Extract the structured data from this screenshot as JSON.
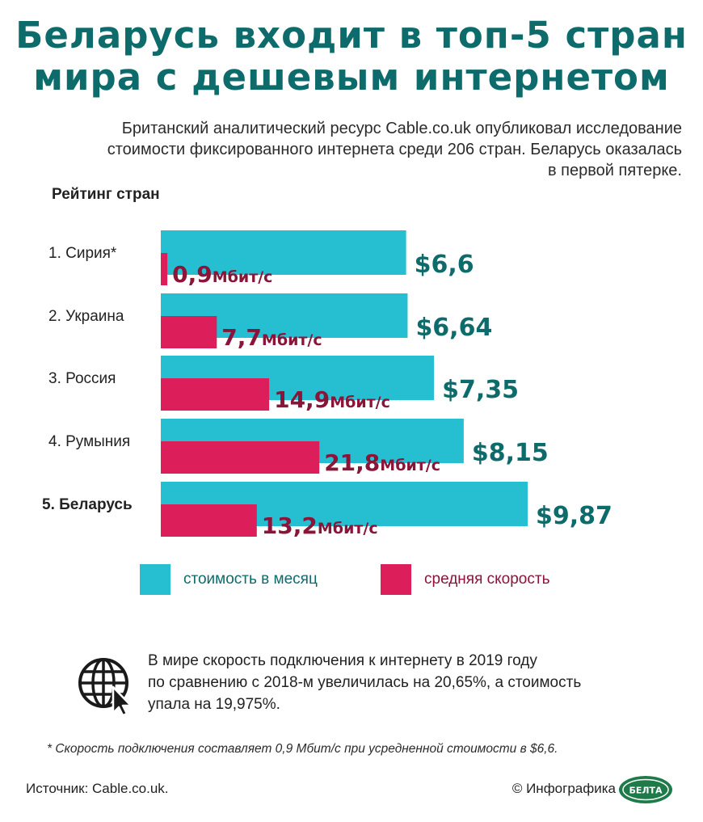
{
  "title": {
    "line1": "Беларусь входит в топ-5 стран",
    "line2": "мира с дешевым интернетом"
  },
  "subtitle": {
    "line1": "Британский аналитический ресурс Cable.co.uk опубликовал исследование",
    "line2": "стоимости фиксированного интернета среди 206 стран. Беларусь оказалась",
    "line3": "в первой пятерке."
  },
  "rating_label": "Рейтинг стран",
  "colors": {
    "cost": "#26bfd1",
    "speed": "#dc1f5a",
    "price_text": "#0e6b6b",
    "speed_text": "#8a1538",
    "title": "#0e6b6b"
  },
  "chart_data": {
    "type": "bar",
    "orientation": "horizontal",
    "categories": [
      "1. Сирия*",
      "2. Украина",
      "3. Россия",
      "4. Румыния",
      "5. Беларусь"
    ],
    "highlight_category": "5. Беларусь",
    "series": [
      {
        "name": "стоимость в месяц",
        "values": [
          6.6,
          6.64,
          7.35,
          8.15,
          9.87
        ],
        "labels": [
          "$6,6",
          "$6,64",
          "$7,35",
          "$8,15",
          "$9,87"
        ]
      },
      {
        "name": "средняя скорость",
        "values": [
          0.9,
          7.7,
          14.9,
          21.8,
          13.2
        ],
        "labels": [
          "0,9",
          "7,7",
          "14,9",
          "21,8",
          "13,2"
        ],
        "unit": "Мбит/с"
      }
    ]
  },
  "legend": {
    "cost": "стоимость в месяц",
    "speed": "средняя скорость"
  },
  "note": {
    "icon": "globe-cursor-icon",
    "line1": "В мире скорость подключения к интернету в 2019 году",
    "line2": "по сравнению с 2018-м увеличилась на 20,65%, а стоимость",
    "line3": "упала на 19,975%."
  },
  "footnote": "* Скорость подключения составляет 0,9 Мбит/с при усредненной стоимости в $6,6.",
  "source": "Источник: Cable.co.uk.",
  "credit": "© Инфографика",
  "logo_text": "БЕЛТА"
}
